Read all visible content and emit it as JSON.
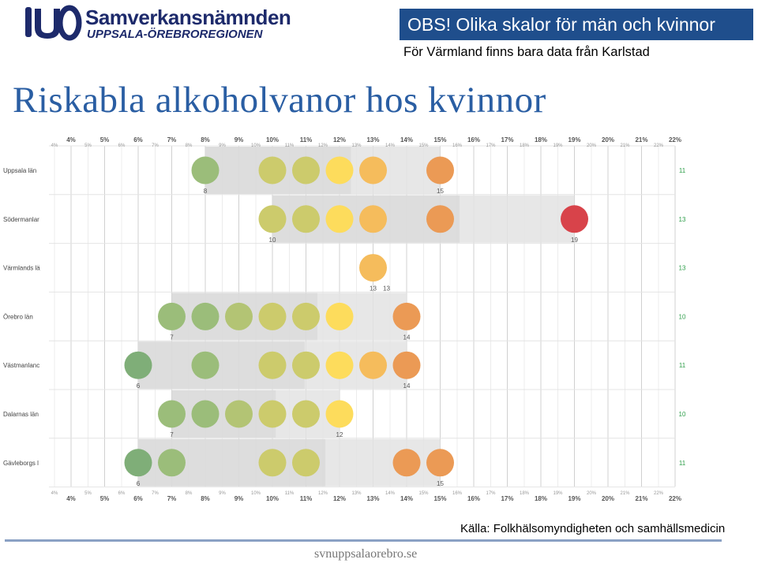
{
  "header": {
    "logo_name": "Samverkansnämnden",
    "logo_region": "UPPSALA-ÖREBROREGIONEN",
    "notice": "OBS! Olika skalor för män och kvinnor",
    "subtitle": "För Värmland finns bara data från Karlstad",
    "title": "Riskabla alkoholvanor hos kvinnor"
  },
  "footer": {
    "source": "Källa: Folkhälsomyndigheten och samhällsmedicin",
    "url": "svnuppsalaorebro.se"
  },
  "colors": {
    "brand_blue": "#1f4e8c",
    "title_blue": "#2a5ea3",
    "right_value": "#2e9e4a",
    "dot_scale": [
      "#7fae78",
      "#9bbd7a",
      "#b3c474",
      "#cccb6c",
      "#fddc5c",
      "#f5bc5c",
      "#eb9a55",
      "#e07a4c",
      "#db5a46",
      "#d8434a"
    ]
  },
  "chart_data": {
    "type": "scatter",
    "x_major_ticks": [
      "4%",
      "5%",
      "6%",
      "7%",
      "8%",
      "9%",
      "10%",
      "11%",
      "12%",
      "13%",
      "14%",
      "15%",
      "16%",
      "17%",
      "18%",
      "19%",
      "20%",
      "21%",
      "22%"
    ],
    "x_minor_ticks": [
      "4%",
      "5%",
      "6%",
      "7%",
      "8%",
      "9%",
      "10%",
      "11%",
      "12%",
      "13%",
      "14%",
      "15%",
      "16%",
      "17%",
      "18%",
      "19%",
      "20%",
      "21%",
      "22%"
    ],
    "xlim": [
      4,
      22
    ],
    "rows": [
      {
        "label": "Uppsala län",
        "dots": [
          8,
          10,
          11,
          12,
          13,
          15
        ],
        "min": 8,
        "max": 15,
        "min_label": "8",
        "max_label": "15",
        "right_value": "11"
      },
      {
        "label": "Södermanlar",
        "dots": [
          10,
          11,
          12,
          13,
          15,
          19
        ],
        "min": 10,
        "max": 19,
        "min_label": "10",
        "max_label": "19",
        "right_value": "13"
      },
      {
        "label": "Värmlands lä",
        "dots": [
          13
        ],
        "min": 13,
        "max": 13,
        "min_label": "13",
        "max_label": "13",
        "right_value": "13"
      },
      {
        "label": "Örebro län",
        "dots": [
          7,
          8,
          9,
          10,
          11,
          12,
          14
        ],
        "min": 7,
        "max": 14,
        "min_label": "7",
        "max_label": "14",
        "right_value": "10"
      },
      {
        "label": "Västmanlanc",
        "dots": [
          6,
          8,
          10,
          11,
          12,
          13,
          14
        ],
        "min": 6,
        "max": 14,
        "min_label": "6",
        "max_label": "14",
        "right_value": "11"
      },
      {
        "label": "Dalarnas län",
        "dots": [
          7,
          8,
          9,
          10,
          11,
          12
        ],
        "min": 7,
        "max": 12,
        "min_label": "7",
        "max_label": "12",
        "right_value": "10"
      },
      {
        "label": "Gävleborgs l",
        "dots": [
          6,
          7,
          10,
          11,
          14,
          15
        ],
        "min": 6,
        "max": 15,
        "min_label": "6",
        "max_label": "15",
        "right_value": "11"
      }
    ]
  }
}
